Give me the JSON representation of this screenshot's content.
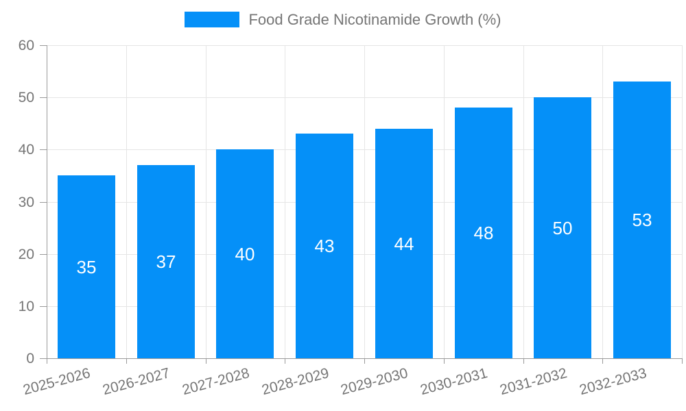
{
  "legend": {
    "label": "Food Grade Nicotinamide Growth (%)"
  },
  "chart_data": {
    "type": "bar",
    "title": "Food Grade Nicotinamide Growth (%)",
    "categories": [
      "2025-2026",
      "2026-2027",
      "2027-2028",
      "2028-2029",
      "2029-2030",
      "2030-2031",
      "2031-2032",
      "2032-2033"
    ],
    "values": [
      35,
      37,
      40,
      43,
      44,
      48,
      50,
      53
    ],
    "xlabel": "",
    "ylabel": "",
    "ylim": [
      0,
      60
    ],
    "yticks": [
      0,
      10,
      20,
      30,
      40,
      50,
      60
    ],
    "grid": true,
    "legend_position": "top",
    "x_label_rotation_deg": -15,
    "colors": {
      "bar": "#0590f8",
      "value_label": "#ffffff",
      "grid": "#e5e5e5",
      "axis": "#999999",
      "tick_label": "#757575",
      "legend_label": "#757575",
      "background": "#ffffff"
    }
  }
}
